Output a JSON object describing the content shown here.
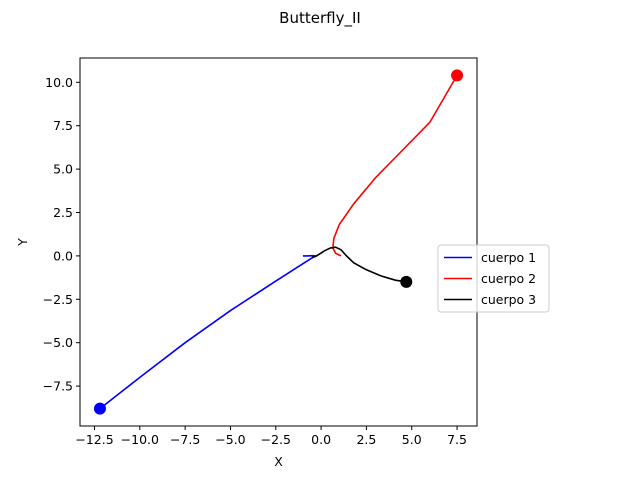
{
  "chart_data": {
    "type": "line",
    "title": "Butterfly_II",
    "xlabel": "X",
    "ylabel": "Y",
    "xlim": [
      -13.3,
      8.6
    ],
    "ylim": [
      -9.8,
      11.4
    ],
    "xticks": [
      -12.5,
      -10.0,
      -7.5,
      -5.0,
      -2.5,
      0.0,
      2.5,
      5.0,
      7.5
    ],
    "xtick_labels": [
      "−12.5",
      "−10.0",
      "−7.5",
      "−5.0",
      "−2.5",
      "0.0",
      "2.5",
      "5.0",
      "7.5"
    ],
    "yticks": [
      -7.5,
      -5.0,
      -2.5,
      0.0,
      2.5,
      5.0,
      7.5,
      10.0
    ],
    "ytick_labels": [
      "−7.5",
      "−5.0",
      "−2.5",
      "0.0",
      "2.5",
      "5.0",
      "7.5",
      "10.0"
    ],
    "grid": false,
    "legend_position": "right",
    "series": [
      {
        "name": "cuerpo 1",
        "color": "#0000ff",
        "points": [
          [
            -1.0,
            0.0
          ],
          [
            -0.75,
            0.0
          ],
          [
            -0.5,
            0.01
          ],
          [
            -0.3,
            0.0
          ],
          [
            -0.4,
            -0.05
          ],
          [
            -0.7,
            -0.25
          ],
          [
            -2.5,
            -1.45
          ],
          [
            -5.0,
            -3.15
          ],
          [
            -7.5,
            -5.0
          ],
          [
            -10.0,
            -7.0
          ],
          [
            -12.2,
            -8.8
          ]
        ],
        "end_marker": [
          -12.2,
          -8.8
        ]
      },
      {
        "name": "cuerpo 2",
        "color": "#ff0000",
        "points": [
          [
            1.1,
            0.0
          ],
          [
            0.8,
            0.15
          ],
          [
            0.65,
            0.45
          ],
          [
            0.7,
            1.0
          ],
          [
            1.0,
            1.8
          ],
          [
            1.8,
            3.0
          ],
          [
            3.0,
            4.5
          ],
          [
            4.5,
            6.1
          ],
          [
            6.0,
            7.7
          ],
          [
            7.5,
            10.4
          ]
        ],
        "end_marker": [
          7.5,
          10.4
        ]
      },
      {
        "name": "cuerpo 3",
        "color": "#000000",
        "points": [
          [
            -0.5,
            -0.1
          ],
          [
            -0.3,
            -0.03
          ],
          [
            -0.1,
            0.1
          ],
          [
            0.2,
            0.3
          ],
          [
            0.5,
            0.45
          ],
          [
            0.8,
            0.5
          ],
          [
            1.1,
            0.35
          ],
          [
            1.4,
            0.0
          ],
          [
            1.8,
            -0.4
          ],
          [
            2.5,
            -0.8
          ],
          [
            3.3,
            -1.15
          ],
          [
            4.1,
            -1.4
          ],
          [
            4.7,
            -1.5
          ]
        ],
        "end_marker": [
          4.7,
          -1.5
        ]
      }
    ]
  }
}
